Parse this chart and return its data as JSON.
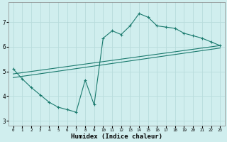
{
  "xlabel": "Humidex (Indice chaleur)",
  "xlim": [
    -0.5,
    23.5
  ],
  "ylim": [
    2.8,
    7.8
  ],
  "yticks": [
    3,
    4,
    5,
    6,
    7
  ],
  "xticks": [
    0,
    1,
    2,
    3,
    4,
    5,
    6,
    7,
    8,
    9,
    10,
    11,
    12,
    13,
    14,
    15,
    16,
    17,
    18,
    19,
    20,
    21,
    22,
    23
  ],
  "bg_color": "#d0eeee",
  "grid_color": "#b8dcdc",
  "line_color": "#1a7a6e",
  "lines": [
    {
      "x": [
        0,
        1,
        2,
        3,
        4,
        5,
        6,
        7,
        8,
        9,
        10,
        11,
        12,
        13,
        14,
        15,
        16,
        17,
        18,
        19,
        20,
        21,
        22,
        23
      ],
      "y": [
        5.1,
        4.7,
        4.35,
        4.05,
        3.75,
        3.55,
        3.45,
        3.35,
        4.65,
        3.65,
        6.35,
        6.65,
        6.5,
        6.85,
        7.35,
        7.2,
        6.85,
        6.8,
        6.75,
        6.55,
        6.45,
        6.35,
        6.2,
        6.05
      ],
      "marker": "+"
    },
    {
      "x": [
        0,
        23
      ],
      "y": [
        4.9,
        6.05
      ],
      "marker": null
    },
    {
      "x": [
        0,
        23
      ],
      "y": [
        4.75,
        5.95
      ],
      "marker": null
    }
  ]
}
